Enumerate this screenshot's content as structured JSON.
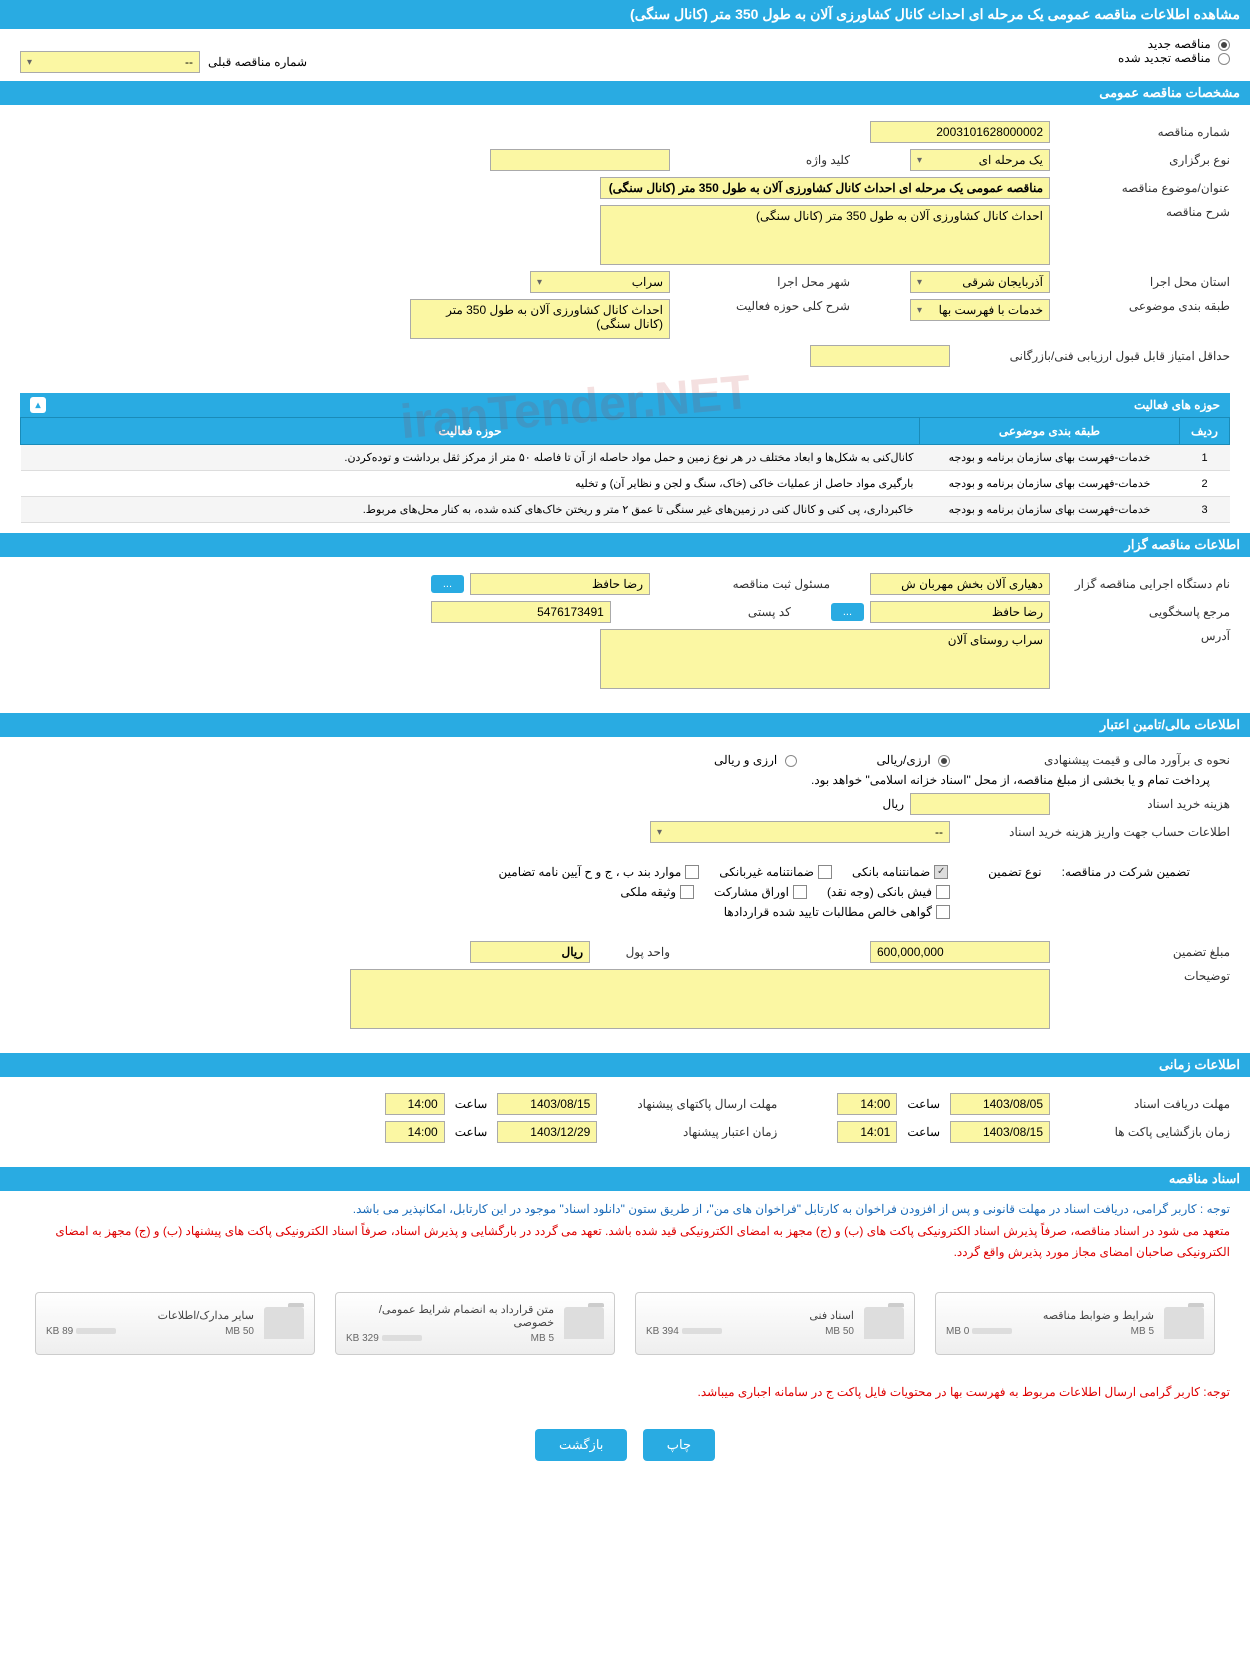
{
  "page_title": "مشاهده اطلاعات مناقصه عمومی یک مرحله ای احداث کانال کشاورزی آلان به طول 350 متر (کانال سنگی)",
  "top_radios": {
    "new": "مناقصه جدید",
    "renewed": "مناقصه تجدید شده",
    "prev_label": "شماره مناقصه قبلی",
    "prev_value": "--"
  },
  "sections": {
    "general": "مشخصات مناقصه عمومی",
    "gozar": "اطلاعات مناقصه گزار",
    "financial": "اطلاعات مالی/تامین اعتبار",
    "time": "اطلاعات زمانی",
    "docs": "اسناد مناقصه"
  },
  "general": {
    "tender_no_label": "شماره مناقصه",
    "tender_no": "2003101628000002",
    "keyword_label": "کلید واژه",
    "keyword": "",
    "type_label": "نوع برگزاری",
    "type": "یک مرحله ای",
    "title_label": "عنوان/موضوع مناقصه",
    "title": "مناقصه عمومی یک مرحله ای احداث کانال کشاورزی آلان به طول 350 متر (کانال سنگی)",
    "desc_label": "شرح مناقصه",
    "desc": "احداث کانال کشاورزی آلان به طول 350 متر (کانال سنگی)",
    "province_label": "استان محل اجرا",
    "province": "آذربایجان شرقی",
    "city_label": "شهر محل اجرا",
    "city": "سراب",
    "class_label": "طبقه بندی موضوعی",
    "class": "خدمات با فهرست بها",
    "scope_label": "شرح کلی حوزه فعالیت",
    "scope": "احداث کانال کشاورزی آلان به طول 350 متر (کانال سنگی)",
    "min_score_label": "حداقل امتیاز قابل قبول ارزیابی فنی/بازرگانی",
    "min_score": ""
  },
  "activities": {
    "header": "حوزه های فعالیت",
    "cols": {
      "row": "ردیف",
      "class": "طبقه بندی موضوعی",
      "scope": "حوزه فعالیت"
    },
    "rows": [
      {
        "n": "1",
        "class": "خدمات-فهرست بهای سازمان برنامه و بودجه",
        "scope": "کانال‌کنی به شکل‌ها و ابعاد مختلف در هر نوع زمین و حمل مواد حاصله از آن تا فاصله ۵۰ متر از مرکز ثقل برداشت و توده‌کردن."
      },
      {
        "n": "2",
        "class": "خدمات-فهرست بهای سازمان برنامه و بودجه",
        "scope": "بارگیری مواد حاصل از عملیات خاکی (خاک، سنگ و لجن و نظایر آن) و تخلیه"
      },
      {
        "n": "3",
        "class": "خدمات-فهرست بهای سازمان برنامه و بودجه",
        "scope": "خاکبرداری، پی کنی و کانال کنی در زمین‌های غیر سنگی تا عمق ۲ متر و ریختن خاک‌های کنده شده، به کنار محل‌های مربوط."
      }
    ]
  },
  "gozar": {
    "org_label": "نام دستگاه اجرایی مناقصه گزار",
    "org": "دهیاری آلان بخش مهربان ش",
    "reg_label": "مسئول ثبت مناقصه",
    "reg": "رضا حافظ",
    "resp_label": "مرجع پاسخگویی",
    "resp": "رضا حافظ",
    "post_label": "کد پستی",
    "post": "5476173491",
    "addr_label": "آدرس",
    "addr": "سراب روستای آلان",
    "more": "..."
  },
  "financial": {
    "est_label": "نحوه ی برآورد مالی و قیمت پیشنهادی",
    "opt_rial": "ارزی/ریالی",
    "opt_both": "ارزی و ریالی",
    "note": "پرداخت تمام و یا بخشی از مبلغ مناقصه، از محل \"اسناد خزانه اسلامی\" خواهد بود.",
    "cost_label": "هزینه خرید اسناد",
    "cost_unit": "ریال",
    "account_label": "اطلاعات حساب جهت واریز هزینه خرید اسناد",
    "account_value": "--",
    "guarantee_label": "تضمین شرکت در مناقصه:",
    "guarantee_type_label": "نوع تضمین",
    "g_bank": "ضمانتنامه بانکی",
    "g_nonbank": "ضمانتنامه غیربانکی",
    "g_bonds": "موارد بند ب ، ج و ح آیین نامه تضامین",
    "g_fish": "فیش بانکی (وجه نقد)",
    "g_stock": "اوراق مشارکت",
    "g_deed": "وثیقه ملکی",
    "g_cert": "گواهی خالص مطالبات تایید شده قراردادها",
    "amount_label": "مبلغ تضمین",
    "amount": "600,000,000",
    "unit_label": "واحد پول",
    "unit": "ریال",
    "notes_label": "توضیحات"
  },
  "time": {
    "recv_label": "مهلت دریافت اسناد",
    "recv_date": "1403/08/05",
    "recv_time_label": "ساعت",
    "recv_time": "14:00",
    "send_label": "مهلت ارسال پاکتهای پیشنهاد",
    "send_date": "1403/08/15",
    "send_time": "14:00",
    "open_label": "زمان بازگشایی پاکت ها",
    "open_date": "1403/08/15",
    "open_time": "14:01",
    "valid_label": "زمان اعتبار پیشنهاد",
    "valid_date": "1403/12/29",
    "valid_time": "14:00"
  },
  "docs": {
    "notice_title": "توجه : کاربر گرامی، دریافت اسناد در مهلت قانونی و پس از افزودن فراخوان به کارتابل \"فراخوان های من\"، از طریق ستون \"دانلود اسناد\" موجود در این کارتابل، امکانپذیر می باشد.",
    "notice_body": "متعهد می شود در اسناد مناقصه، صرفاً پذیرش اسناد الکترونیکی پاکت های (ب) و (ج) مجهز به امضای الکترونیکی قید شده باشد. تعهد می گردد در بارگشایی و پذیرش اسناد، صرفاً اسناد الکترونیکی پاکت های پیشنهاد (ب) و (ج) مجهز به امضای الکترونیکی صاحبان امضای مجاز مورد پذیرش واقع گردد.",
    "cards": [
      {
        "title": "شرایط و ضوابط مناقصه",
        "size": "0 MB",
        "max": "5 MB",
        "pct": 2
      },
      {
        "title": "اسناد فنی",
        "size": "394 KB",
        "max": "50 MB",
        "pct": 4
      },
      {
        "title": "متن قرارداد به انضمام شرایط عمومی/خصوصی",
        "size": "329 KB",
        "max": "5 MB",
        "pct": 15
      },
      {
        "title": "سایر مدارک/اطلاعات",
        "size": "89 KB",
        "max": "50 MB",
        "pct": 2
      }
    ],
    "footer_note": "توجه: کاربر گرامی ارسال اطلاعات مربوط به فهرست بها در محتویات فایل پاکت ج در سامانه اجباری میباشد."
  },
  "buttons": {
    "print": "چاپ",
    "back": "بازگشت"
  },
  "watermark": "iranTender.NET"
}
